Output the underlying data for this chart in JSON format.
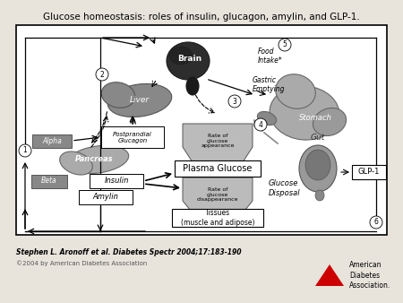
{
  "title": "Glucose homeostasis: roles of insulin, glucagon, amylin, and GLP-1.",
  "bg_color": "#e8e4dc",
  "citation": "Stephen L. Aronoff et al. Diabetes Spectr 2004;17:183-190",
  "copyright": "©2004 by American Diabetes Association"
}
